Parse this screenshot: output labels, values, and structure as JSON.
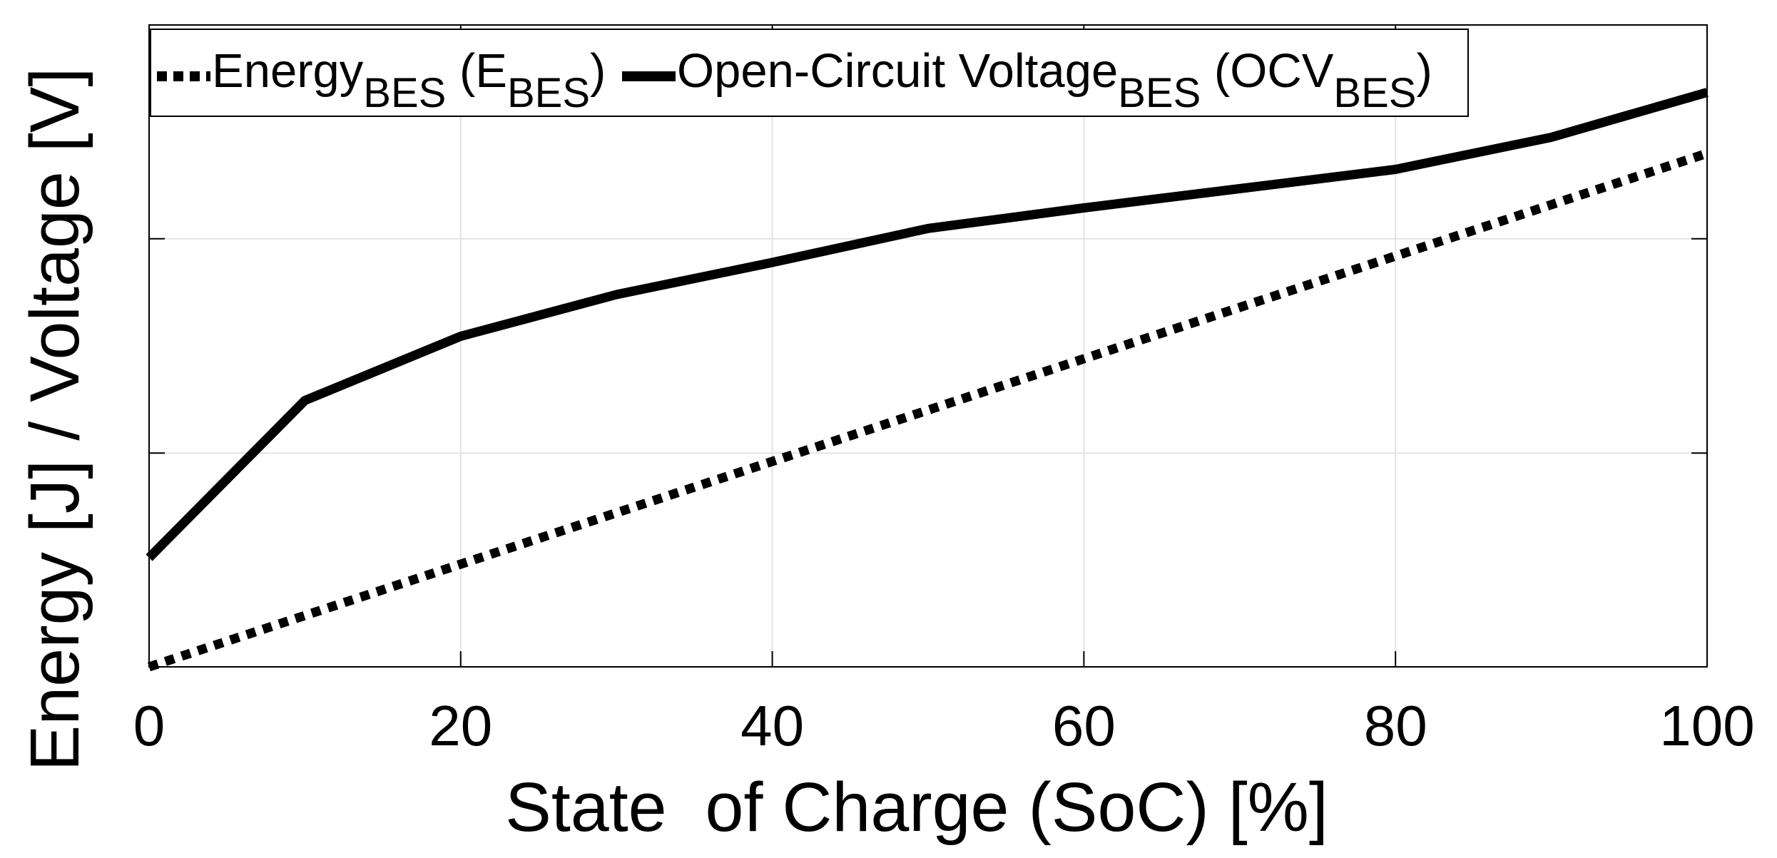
{
  "chart_data": {
    "type": "line",
    "xlabel": "State  of Charge (SoC) [%]",
    "ylabel": "Energy [J] / Voltage [V]",
    "xlim": [
      0,
      100
    ],
    "ylim": [
      0,
      1
    ],
    "xticks": [
      "0",
      "20",
      "40",
      "60",
      "80",
      "100"
    ],
    "ytick_values": [
      0,
      0.333,
      0.667,
      1
    ],
    "ytick_labels_shown": false,
    "grid": true,
    "legend_position": "top-left",
    "series": [
      {
        "name": "Energy (E)",
        "legend_base": "Energy",
        "legend_sub": "BES",
        "legend_paren_base": "(E",
        "legend_paren_sub": "BES",
        "legend_close": ")",
        "style": "dotted",
        "color": "#000000",
        "x": [
          0,
          100
        ],
        "y": [
          0.0,
          0.8
        ]
      },
      {
        "name": "Open-Circuit Voltage (OCV)",
        "legend_base": "Open-Circuit Voltage",
        "legend_sub": "BES",
        "legend_paren_base": "(OCV",
        "legend_paren_sub": "BES",
        "legend_close": ")",
        "style": "solid",
        "color": "#000000",
        "x": [
          0,
          10,
          20,
          30,
          40,
          50,
          60,
          70,
          80,
          90,
          100
        ],
        "y": [
          0.17,
          0.415,
          0.515,
          0.58,
          0.63,
          0.683,
          0.715,
          0.745,
          0.775,
          0.825,
          0.895
        ]
      }
    ]
  }
}
